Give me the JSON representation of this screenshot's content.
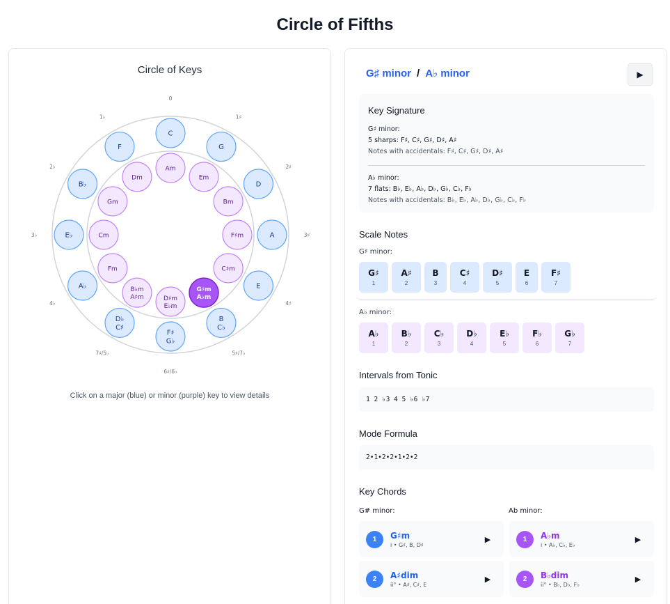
{
  "page_title": "Circle of Fifths",
  "circle": {
    "title": "Circle of Keys",
    "hint": "Click on a major (blue) or minor (purple) key to view details",
    "accidental_labels": [
      "0",
      "1♯",
      "2♯",
      "3♯",
      "4♯",
      "5♯/7♭",
      "6♯/6♭",
      "7♯/5♭",
      "4♭",
      "3♭",
      "2♭",
      "1♭"
    ],
    "major_keys": [
      [
        "C"
      ],
      [
        "G"
      ],
      [
        "D"
      ],
      [
        "A"
      ],
      [
        "E"
      ],
      [
        "B",
        "C♭"
      ],
      [
        "F♯",
        "G♭"
      ],
      [
        "D♭",
        "C♯"
      ],
      [
        "A♭"
      ],
      [
        "E♭"
      ],
      [
        "B♭"
      ],
      [
        "F"
      ]
    ],
    "minor_keys": [
      [
        "Am"
      ],
      [
        "Em"
      ],
      [
        "Bm"
      ],
      [
        "F♯m"
      ],
      [
        "C♯m"
      ],
      [
        "G♯m",
        "A♭m"
      ],
      [
        "D♯m",
        "E♭m"
      ],
      [
        "B♭m",
        "A♯m"
      ],
      [
        "Fm"
      ],
      [
        "Cm"
      ],
      [
        "Gm"
      ],
      [
        "Dm"
      ]
    ],
    "selected_minor_index": 5,
    "colors": {
      "major_fill": "#dbeafe",
      "minor_fill": "#f3e8ff",
      "selected_fill": "#a855f7"
    }
  },
  "detail": {
    "key_primary": "G♯ minor",
    "separator": "/",
    "key_secondary": "A♭ minor",
    "play_icon": "play-icon",
    "signature": {
      "title": "Key Signature",
      "primary_name": "G♯ minor:",
      "primary_count": "5 sharps: F♯, C♯, G♯, D♯, A♯",
      "primary_notes": "Notes with accidentals: F♯, C♯, G♯, D♯, A♯",
      "secondary_name": "A♭ minor:",
      "secondary_count": "7 flats: B♭, E♭, A♭, D♭, G♭, C♭, F♭",
      "secondary_notes": "Notes with accidentals: B♭, E♭, A♭, D♭, G♭, C♭, F♭"
    },
    "scale": {
      "title": "Scale Notes",
      "primary_label": "G♯ minor:",
      "primary_notes": [
        {
          "note": "G♯",
          "degree": "1"
        },
        {
          "note": "A♯",
          "degree": "2"
        },
        {
          "note": "B",
          "degree": "3"
        },
        {
          "note": "C♯",
          "degree": "4"
        },
        {
          "note": "D♯",
          "degree": "5"
        },
        {
          "note": "E",
          "degree": "6"
        },
        {
          "note": "F♯",
          "degree": "7"
        }
      ],
      "secondary_label": "A♭ minor:",
      "secondary_notes": [
        {
          "note": "A♭",
          "degree": "1"
        },
        {
          "note": "B♭",
          "degree": "2"
        },
        {
          "note": "C♭",
          "degree": "3"
        },
        {
          "note": "D♭",
          "degree": "4"
        },
        {
          "note": "E♭",
          "degree": "5"
        },
        {
          "note": "F♭",
          "degree": "6"
        },
        {
          "note": "G♭",
          "degree": "7"
        }
      ]
    },
    "intervals": {
      "title": "Intervals from Tonic",
      "value": "1 2 ♭3 4 5 ♭6 ♭7"
    },
    "mode_formula": {
      "title": "Mode Formula",
      "value": "2•1•2•2•1•2•2"
    },
    "chords": {
      "title": "Key Chords",
      "primary_label": "G# minor:",
      "secondary_label": "Ab minor:",
      "primary": [
        {
          "num": "1",
          "name": "G♯m",
          "notes": "i • G♯, B, D♯"
        },
        {
          "num": "2",
          "name": "A♯dim",
          "notes": "ii° • A♯, C♯, E"
        }
      ],
      "secondary": [
        {
          "num": "1",
          "name": "A♭m",
          "notes": "i • A♭, C♭, E♭"
        },
        {
          "num": "2",
          "name": "B♭dim",
          "notes": "ii° • B♭, D♭, F♭"
        }
      ]
    }
  }
}
